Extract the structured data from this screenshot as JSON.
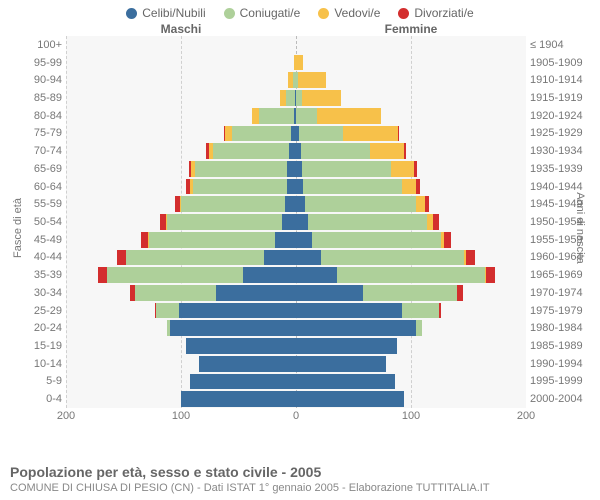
{
  "legend": [
    {
      "label": "Celibi/Nubili",
      "color": "#3b6e9e"
    },
    {
      "label": "Coniugati/e",
      "color": "#aed09a"
    },
    {
      "label": "Vedovi/e",
      "color": "#f7c14a"
    },
    {
      "label": "Divorziati/e",
      "color": "#d32e2e"
    }
  ],
  "titles": {
    "male": "Maschi",
    "female": "Femmine"
  },
  "axis_left_title": "Fasce di età",
  "axis_right_title": "Anni di nascita",
  "footer_main": "Popolazione per età, sesso e stato civile - 2005",
  "footer_sub": "COMUNE DI CHIUSA DI PESIO (CN) - Dati ISTAT 1° gennaio 2005 - Elaborazione TUTTITALIA.IT",
  "xmax": 200,
  "xticks": [
    200,
    100,
    0,
    100,
    200
  ],
  "plot": {
    "background": "#f7f7f7",
    "grid_color": "#d0d0d0"
  },
  "fontsize": {
    "legend": 12,
    "titles": 12,
    "labels": 11,
    "footer_main": 14,
    "footer_sub": 11
  },
  "rows": [
    {
      "age": "100+",
      "birth": "≤ 1904",
      "m": [
        0,
        0,
        0,
        0
      ],
      "f": [
        0,
        0,
        0,
        0
      ]
    },
    {
      "age": "95-99",
      "birth": "1905-1909",
      "m": [
        0,
        0,
        2,
        0
      ],
      "f": [
        0,
        0,
        6,
        0
      ]
    },
    {
      "age": "90-94",
      "birth": "1910-1914",
      "m": [
        0,
        3,
        4,
        0
      ],
      "f": [
        0,
        2,
        24,
        0
      ]
    },
    {
      "age": "85-89",
      "birth": "1915-1919",
      "m": [
        1,
        8,
        5,
        0
      ],
      "f": [
        0,
        5,
        34,
        0
      ]
    },
    {
      "age": "80-84",
      "birth": "1920-1924",
      "m": [
        2,
        30,
        6,
        0
      ],
      "f": [
        0,
        18,
        56,
        0
      ]
    },
    {
      "age": "75-79",
      "birth": "1925-1929",
      "m": [
        4,
        52,
        6,
        1
      ],
      "f": [
        3,
        38,
        48,
        1
      ]
    },
    {
      "age": "70-74",
      "birth": "1930-1934",
      "m": [
        6,
        66,
        4,
        2
      ],
      "f": [
        4,
        60,
        30,
        2
      ]
    },
    {
      "age": "65-69",
      "birth": "1935-1939",
      "m": [
        8,
        80,
        3,
        2
      ],
      "f": [
        5,
        78,
        20,
        2
      ]
    },
    {
      "age": "60-64",
      "birth": "1940-1944",
      "m": [
        8,
        82,
        2,
        4
      ],
      "f": [
        6,
        86,
        12,
        4
      ]
    },
    {
      "age": "55-59",
      "birth": "1945-1949",
      "m": [
        10,
        90,
        1,
        4
      ],
      "f": [
        8,
        96,
        8,
        4
      ]
    },
    {
      "age": "50-54",
      "birth": "1950-1954",
      "m": [
        12,
        100,
        1,
        5
      ],
      "f": [
        10,
        104,
        5,
        5
      ]
    },
    {
      "age": "45-49",
      "birth": "1955-1959",
      "m": [
        18,
        110,
        1,
        6
      ],
      "f": [
        14,
        112,
        3,
        6
      ]
    },
    {
      "age": "40-44",
      "birth": "1960-1964",
      "m": [
        28,
        120,
        0,
        8
      ],
      "f": [
        22,
        124,
        2,
        8
      ]
    },
    {
      "age": "35-39",
      "birth": "1965-1969",
      "m": [
        46,
        118,
        0,
        8
      ],
      "f": [
        36,
        128,
        1,
        8
      ]
    },
    {
      "age": "30-34",
      "birth": "1970-1974",
      "m": [
        70,
        70,
        0,
        4
      ],
      "f": [
        58,
        82,
        0,
        5
      ]
    },
    {
      "age": "25-29",
      "birth": "1975-1979",
      "m": [
        102,
        20,
        0,
        1
      ],
      "f": [
        92,
        32,
        0,
        2
      ]
    },
    {
      "age": "20-24",
      "birth": "1980-1984",
      "m": [
        110,
        2,
        0,
        0
      ],
      "f": [
        104,
        6,
        0,
        0
      ]
    },
    {
      "age": "15-19",
      "birth": "1985-1989",
      "m": [
        96,
        0,
        0,
        0
      ],
      "f": [
        88,
        0,
        0,
        0
      ]
    },
    {
      "age": "10-14",
      "birth": "1990-1994",
      "m": [
        84,
        0,
        0,
        0
      ],
      "f": [
        78,
        0,
        0,
        0
      ]
    },
    {
      "age": "5-9",
      "birth": "1995-1999",
      "m": [
        92,
        0,
        0,
        0
      ],
      "f": [
        86,
        0,
        0,
        0
      ]
    },
    {
      "age": "0-4",
      "birth": "2000-2004",
      "m": [
        100,
        0,
        0,
        0
      ],
      "f": [
        94,
        0,
        0,
        0
      ]
    }
  ]
}
